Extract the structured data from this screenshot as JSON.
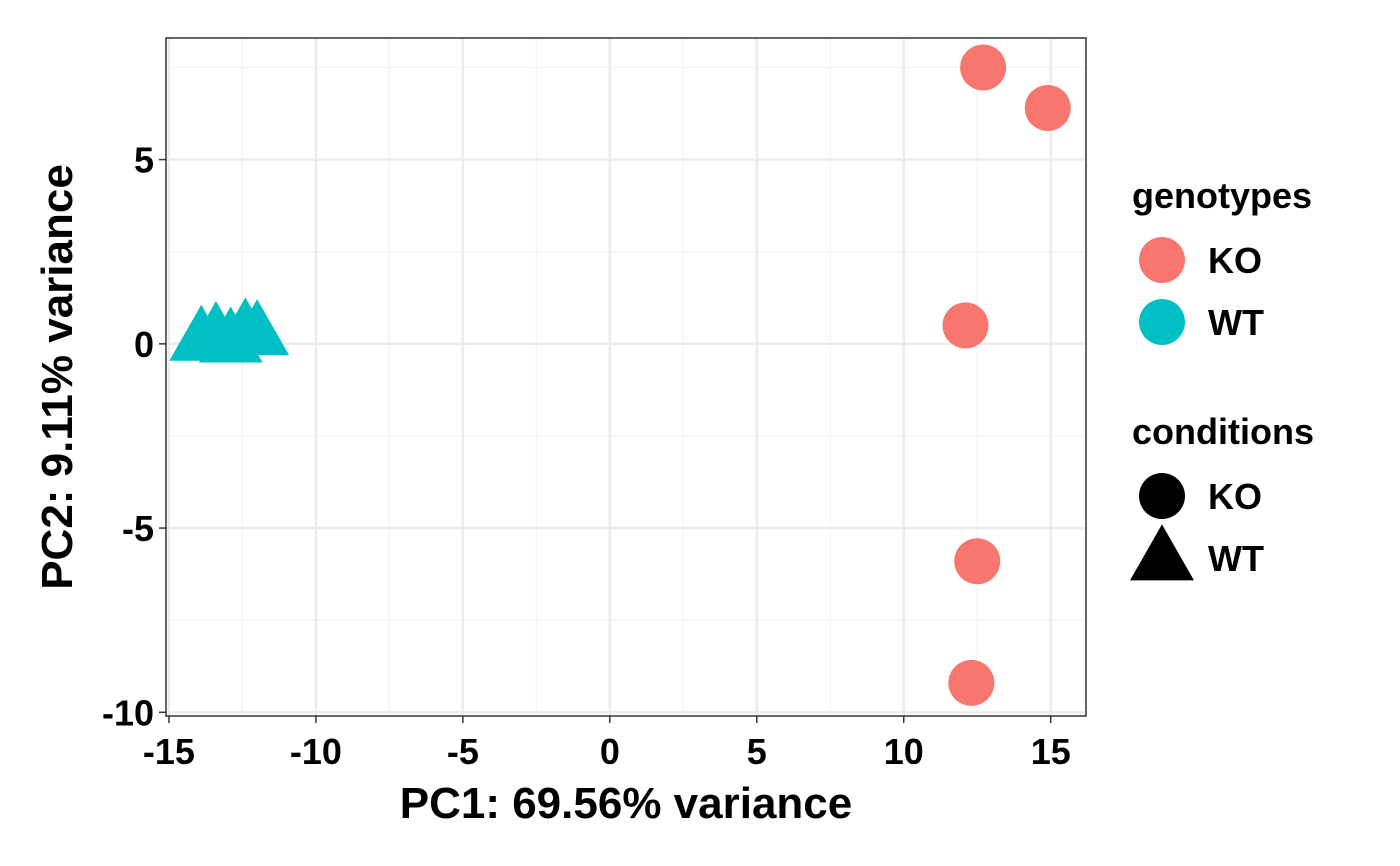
{
  "chart_data": {
    "type": "scatter",
    "xlabel": "PC1: 69.56% variance",
    "ylabel": "PC2: 9.11% variance",
    "xlim": [
      -15.1,
      16.2
    ],
    "ylim": [
      -10.1,
      8.3
    ],
    "x_ticks": [
      -15,
      -10,
      -5,
      0,
      5,
      10,
      15
    ],
    "y_ticks": [
      -10,
      -5,
      0,
      5
    ],
    "x_tick_labels": [
      "-15",
      "-10",
      "-5",
      "0",
      "5",
      "10",
      "15"
    ],
    "y_tick_labels": [
      "-10",
      "-5",
      "0",
      "5"
    ],
    "grid": true,
    "legend_position": "right",
    "colors": {
      "KO": "#F8766D",
      "WT": "#00BFC4"
    },
    "legends": [
      {
        "title": "genotypes",
        "type": "color",
        "entries": [
          "KO",
          "WT"
        ]
      },
      {
        "title": "conditions",
        "type": "shape",
        "entries": [
          "KO",
          "WT"
        ]
      }
    ],
    "points": [
      {
        "x": 12.7,
        "y": 7.5,
        "genotype": "KO",
        "condition": "KO"
      },
      {
        "x": 14.9,
        "y": 6.4,
        "genotype": "KO",
        "condition": "KO"
      },
      {
        "x": 12.1,
        "y": 0.5,
        "genotype": "KO",
        "condition": "KO"
      },
      {
        "x": 12.5,
        "y": -5.9,
        "genotype": "KO",
        "condition": "KO"
      },
      {
        "x": 12.3,
        "y": -9.2,
        "genotype": "KO",
        "condition": "KO"
      },
      {
        "x": -13.9,
        "y": 0.15,
        "genotype": "WT",
        "condition": "WT"
      },
      {
        "x": -13.4,
        "y": 0.25,
        "genotype": "WT",
        "condition": "WT"
      },
      {
        "x": -12.9,
        "y": 0.1,
        "genotype": "WT",
        "condition": "WT"
      },
      {
        "x": -12.4,
        "y": 0.35,
        "genotype": "WT",
        "condition": "WT"
      },
      {
        "x": -12.0,
        "y": 0.3,
        "genotype": "WT",
        "condition": "WT"
      }
    ]
  }
}
